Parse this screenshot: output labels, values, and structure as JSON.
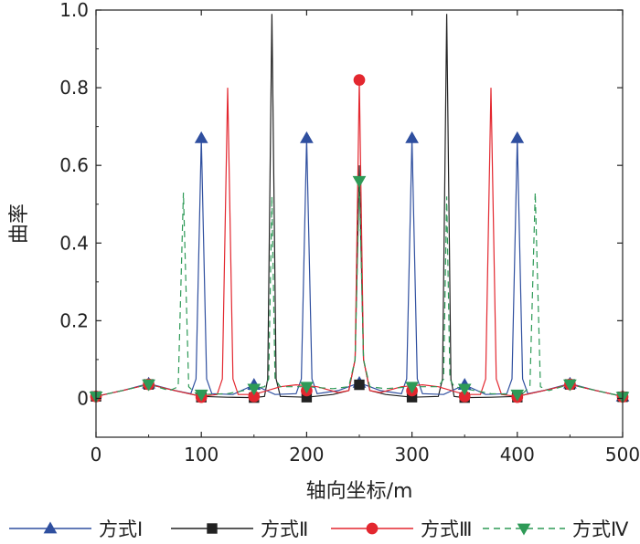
{
  "chart_data": {
    "type": "line",
    "xlabel": "轴向坐标/m",
    "ylabel": "曲率",
    "xlim": [
      0,
      500
    ],
    "ylim": [
      -0.1,
      1.0
    ],
    "x_ticks": [
      "0",
      "100",
      "200",
      "300",
      "400",
      "500"
    ],
    "x_tick_values": [
      0,
      100,
      200,
      300,
      400,
      500
    ],
    "y_ticks": [
      "0",
      "0.2",
      "0.4",
      "0.6",
      "0.8",
      "1.0"
    ],
    "y_tick_values": [
      0,
      0.2,
      0.4,
      0.6,
      0.8,
      1.0
    ],
    "grid": false,
    "legend_position": "bottom",
    "series": [
      {
        "name": "方式Ⅰ",
        "color": "#2f4f9f",
        "dash": "solid",
        "marker": "triangle-up",
        "points": [
          [
            0,
            0.005
          ],
          [
            25,
            0.02
          ],
          [
            50,
            0.038
          ],
          [
            75,
            0.02
          ],
          [
            90,
            0.012
          ],
          [
            95,
            0.05
          ],
          [
            100,
            0.67
          ],
          [
            105,
            0.05
          ],
          [
            110,
            0.012
          ],
          [
            130,
            0.01
          ],
          [
            150,
            0.035
          ],
          [
            170,
            0.01
          ],
          [
            190,
            0.012
          ],
          [
            195,
            0.05
          ],
          [
            200,
            0.67
          ],
          [
            205,
            0.05
          ],
          [
            210,
            0.012
          ],
          [
            230,
            0.02
          ],
          [
            250,
            0.04
          ],
          [
            270,
            0.02
          ],
          [
            290,
            0.012
          ],
          [
            295,
            0.05
          ],
          [
            300,
            0.67
          ],
          [
            305,
            0.05
          ],
          [
            310,
            0.012
          ],
          [
            330,
            0.01
          ],
          [
            350,
            0.035
          ],
          [
            370,
            0.01
          ],
          [
            390,
            0.012
          ],
          [
            395,
            0.05
          ],
          [
            400,
            0.67
          ],
          [
            405,
            0.05
          ],
          [
            410,
            0.012
          ],
          [
            425,
            0.02
          ],
          [
            450,
            0.038
          ],
          [
            475,
            0.02
          ],
          [
            500,
            0.005
          ]
        ],
        "markers": [
          [
            50,
            0.038
          ],
          [
            100,
            0.67
          ],
          [
            150,
            0.035
          ],
          [
            200,
            0.67
          ],
          [
            250,
            0.04
          ],
          [
            300,
            0.67
          ],
          [
            350,
            0.035
          ],
          [
            400,
            0.67
          ],
          [
            450,
            0.038
          ],
          [
            500,
            0.005
          ]
        ]
      },
      {
        "name": "方式Ⅱ",
        "color": "#222222",
        "dash": "solid",
        "marker": "square",
        "points": [
          [
            0,
            0.005
          ],
          [
            25,
            0.02
          ],
          [
            50,
            0.036
          ],
          [
            75,
            0.02
          ],
          [
            100,
            0.005
          ],
          [
            125,
            0.003
          ],
          [
            150,
            0.002
          ],
          [
            160,
            0.005
          ],
          [
            163,
            0.05
          ],
          [
            167,
            0.99
          ],
          [
            171,
            0.05
          ],
          [
            175,
            0.005
          ],
          [
            200,
            0.003
          ],
          [
            225,
            0.01
          ],
          [
            240,
            0.02
          ],
          [
            246,
            0.1
          ],
          [
            250,
            0.6
          ],
          [
            254,
            0.1
          ],
          [
            260,
            0.02
          ],
          [
            275,
            0.01
          ],
          [
            300,
            0.003
          ],
          [
            325,
            0.005
          ],
          [
            329,
            0.05
          ],
          [
            333,
            0.99
          ],
          [
            337,
            0.05
          ],
          [
            340,
            0.005
          ],
          [
            350,
            0.002
          ],
          [
            375,
            0.003
          ],
          [
            400,
            0.005
          ],
          [
            425,
            0.02
          ],
          [
            450,
            0.036
          ],
          [
            475,
            0.02
          ],
          [
            500,
            0.005
          ]
        ],
        "markers": [
          [
            0,
            0.005
          ],
          [
            50,
            0.036
          ],
          [
            100,
            0.003
          ],
          [
            150,
            0.002
          ],
          [
            200,
            0.003
          ],
          [
            250,
            0.035
          ],
          [
            300,
            0.003
          ],
          [
            350,
            0.002
          ],
          [
            400,
            0.003
          ],
          [
            450,
            0.036
          ],
          [
            500,
            0.004
          ]
        ]
      },
      {
        "name": "方式Ⅲ",
        "color": "#e3272f",
        "dash": "solid",
        "marker": "circle",
        "points": [
          [
            0,
            0.005
          ],
          [
            25,
            0.02
          ],
          [
            50,
            0.036
          ],
          [
            75,
            0.02
          ],
          [
            100,
            0.005
          ],
          [
            115,
            0.01
          ],
          [
            120,
            0.05
          ],
          [
            125,
            0.8
          ],
          [
            130,
            0.05
          ],
          [
            135,
            0.01
          ],
          [
            150,
            0.01
          ],
          [
            175,
            0.03
          ],
          [
            190,
            0.035
          ],
          [
            210,
            0.03
          ],
          [
            230,
            0.015
          ],
          [
            240,
            0.02
          ],
          [
            246,
            0.1
          ],
          [
            250,
            0.82
          ],
          [
            254,
            0.1
          ],
          [
            260,
            0.02
          ],
          [
            270,
            0.015
          ],
          [
            290,
            0.03
          ],
          [
            310,
            0.035
          ],
          [
            325,
            0.03
          ],
          [
            350,
            0.01
          ],
          [
            365,
            0.01
          ],
          [
            370,
            0.05
          ],
          [
            375,
            0.8
          ],
          [
            380,
            0.05
          ],
          [
            385,
            0.01
          ],
          [
            400,
            0.005
          ],
          [
            425,
            0.02
          ],
          [
            450,
            0.036
          ],
          [
            475,
            0.02
          ],
          [
            500,
            0.005
          ]
        ],
        "markers": [
          [
            0,
            0.005
          ],
          [
            50,
            0.036
          ],
          [
            100,
            0.003
          ],
          [
            150,
            0.005
          ],
          [
            200,
            0.02
          ],
          [
            250,
            0.82
          ],
          [
            300,
            0.02
          ],
          [
            350,
            0.005
          ],
          [
            400,
            0.003
          ],
          [
            450,
            0.036
          ],
          [
            500,
            0.004
          ]
        ]
      },
      {
        "name": "方式Ⅳ",
        "color": "#2e9a57",
        "dash": "dashed",
        "marker": "triangle-down",
        "points": [
          [
            0,
            0.005
          ],
          [
            25,
            0.02
          ],
          [
            50,
            0.036
          ],
          [
            70,
            0.02
          ],
          [
            78,
            0.03
          ],
          [
            83,
            0.53
          ],
          [
            88,
            0.03
          ],
          [
            95,
            0.012
          ],
          [
            100,
            0.01
          ],
          [
            125,
            0.012
          ],
          [
            150,
            0.025
          ],
          [
            160,
            0.03
          ],
          [
            164,
            0.05
          ],
          [
            167,
            0.52
          ],
          [
            170,
            0.05
          ],
          [
            175,
            0.03
          ],
          [
            200,
            0.03
          ],
          [
            225,
            0.025
          ],
          [
            240,
            0.03
          ],
          [
            246,
            0.1
          ],
          [
            250,
            0.56
          ],
          [
            254,
            0.1
          ],
          [
            260,
            0.03
          ],
          [
            275,
            0.025
          ],
          [
            300,
            0.03
          ],
          [
            325,
            0.03
          ],
          [
            330,
            0.05
          ],
          [
            333,
            0.52
          ],
          [
            336,
            0.05
          ],
          [
            340,
            0.03
          ],
          [
            350,
            0.025
          ],
          [
            375,
            0.012
          ],
          [
            400,
            0.01
          ],
          [
            405,
            0.012
          ],
          [
            412,
            0.03
          ],
          [
            417,
            0.53
          ],
          [
            422,
            0.03
          ],
          [
            430,
            0.02
          ],
          [
            450,
            0.036
          ],
          [
            475,
            0.02
          ],
          [
            500,
            0.005
          ]
        ],
        "markers": [
          [
            0,
            0.005
          ],
          [
            50,
            0.036
          ],
          [
            100,
            0.01
          ],
          [
            150,
            0.025
          ],
          [
            200,
            0.03
          ],
          [
            250,
            0.56
          ],
          [
            300,
            0.03
          ],
          [
            350,
            0.025
          ],
          [
            400,
            0.01
          ],
          [
            450,
            0.036
          ],
          [
            500,
            0.004
          ]
        ]
      }
    ]
  }
}
